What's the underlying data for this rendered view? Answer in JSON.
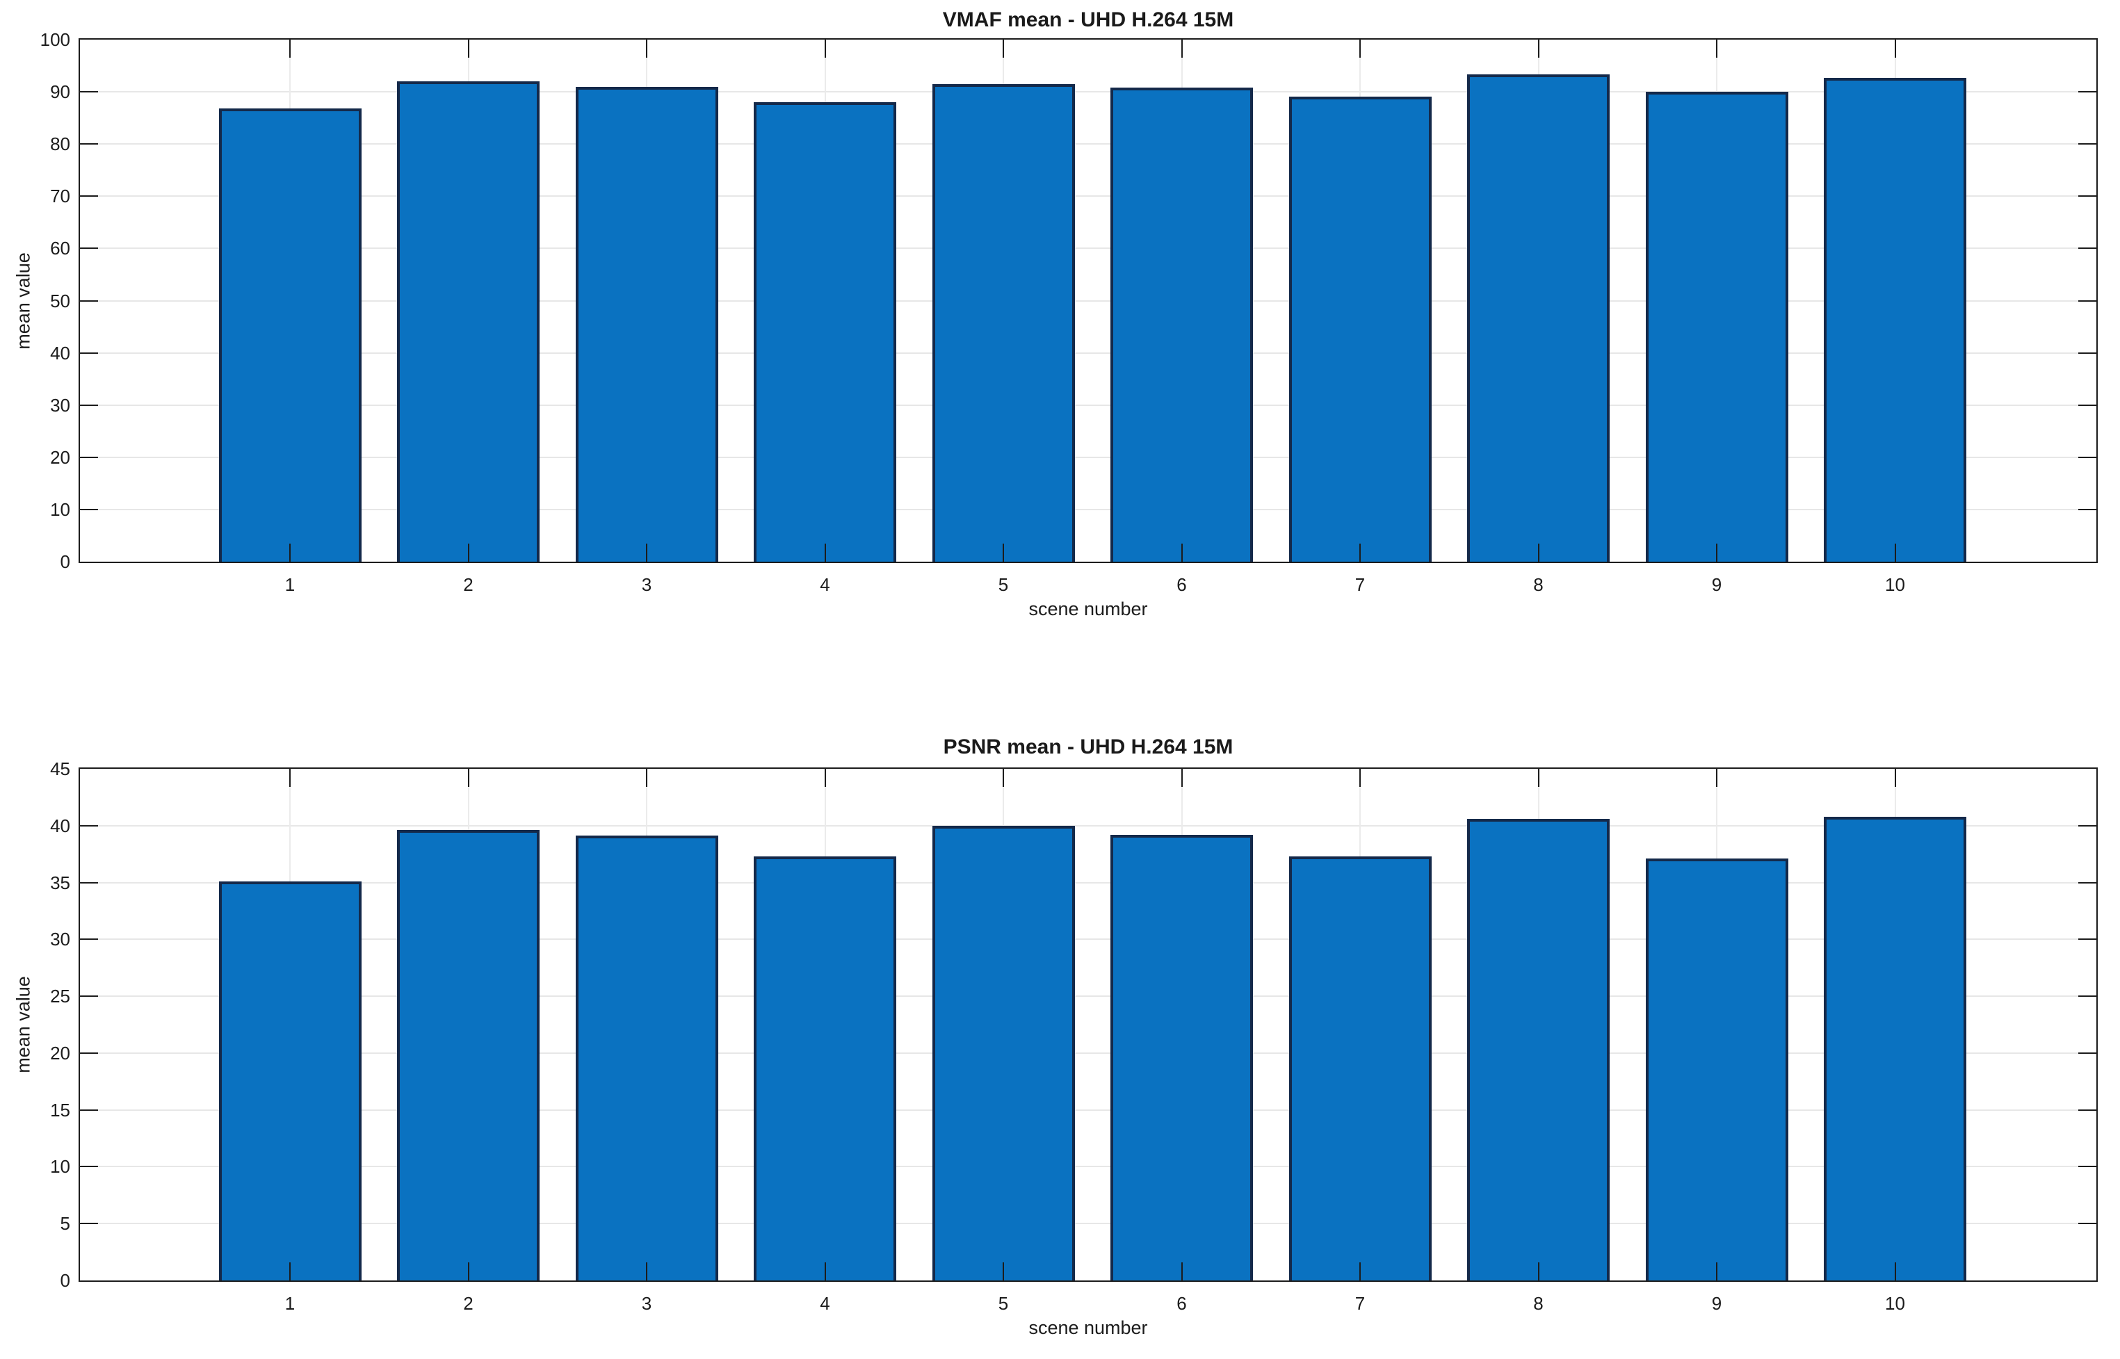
{
  "figure": {
    "background_color": "#ffffff",
    "text_color": "#1c1c1c",
    "grid_color": "#e7e7e7"
  },
  "chart_data": [
    {
      "type": "bar",
      "title": "VMAF mean - UHD H.264 15M",
      "xlabel": "scene number",
      "ylabel": "mean value",
      "categories": [
        "1",
        "2",
        "3",
        "4",
        "5",
        "6",
        "7",
        "8",
        "9",
        "10"
      ],
      "values": [
        86.8,
        92.0,
        90.9,
        88.0,
        91.5,
        90.8,
        89.1,
        93.3,
        90.0,
        92.7
      ],
      "ylim": [
        0,
        100
      ],
      "yticks": [
        0,
        10,
        20,
        30,
        40,
        50,
        60,
        70,
        80,
        90,
        100
      ],
      "grid": true,
      "legend": false,
      "bar_color": "#0a72c1",
      "bar_edge_color": "#14294a"
    },
    {
      "type": "bar",
      "title": "PSNR mean - UHD H.264 15M",
      "xlabel": "scene number",
      "ylabel": "mean value",
      "categories": [
        "1",
        "2",
        "3",
        "4",
        "5",
        "6",
        "7",
        "8",
        "9",
        "10"
      ],
      "values": [
        35.1,
        39.6,
        39.1,
        37.3,
        40.0,
        39.2,
        37.3,
        40.6,
        37.1,
        40.8
      ],
      "ylim": [
        0,
        45
      ],
      "yticks": [
        0,
        5,
        10,
        15,
        20,
        25,
        30,
        35,
        40,
        45
      ],
      "grid": true,
      "legend": false,
      "bar_color": "#0a72c1",
      "bar_edge_color": "#14294a"
    }
  ]
}
